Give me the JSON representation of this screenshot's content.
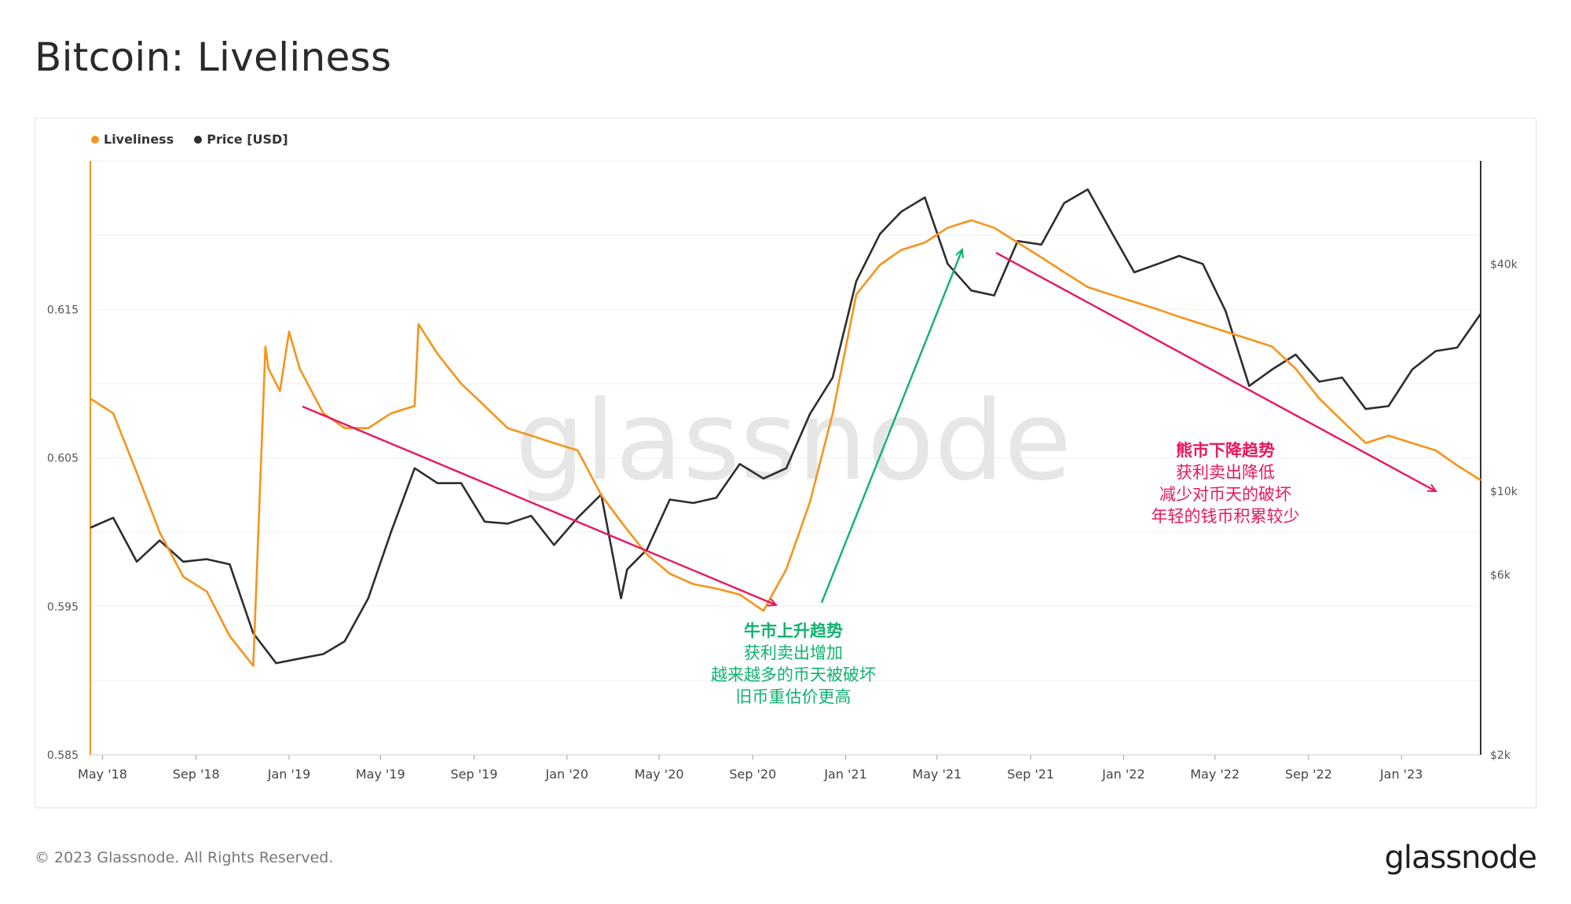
{
  "header": {
    "title": "Bitcoin: Liveliness"
  },
  "footer": {
    "copyright": "© 2023 Glassnode. All Rights Reserved.",
    "logo": "glassnode"
  },
  "watermark": "glassnode",
  "colors": {
    "liveliness": "#f7931a",
    "price": "#2d2d2d",
    "bull": "#0fb26e",
    "bear": "#e8175d"
  },
  "chart_data": {
    "type": "line",
    "title": "Bitcoin: Liveliness",
    "x_ticks": [
      "May '18",
      "Sep '18",
      "Jan '19",
      "May '19",
      "Sep '19",
      "Jan '20",
      "May '20",
      "Sep '20",
      "Jan '21",
      "May '21",
      "Sep '21",
      "Jan '22",
      "May '22",
      "Sep '22",
      "Jan '23"
    ],
    "y_left_ticks": [
      "0.615",
      "0.605",
      "0.595",
      "0.585"
    ],
    "y_left_tick_values": [
      0.615,
      0.605,
      0.595,
      0.585
    ],
    "y_right_ticks": [
      "$40k",
      "$10k",
      "$6k",
      "$2k"
    ],
    "y_right_tick_values": [
      40000,
      10000,
      6000,
      2000
    ],
    "y_left_range": [
      0.585,
      0.625
    ],
    "y_right_scale": "log",
    "x_range": [
      "2018-04-15",
      "2023-04-15"
    ],
    "legend_position": "top-left",
    "series": [
      {
        "name": "Liveliness",
        "axis": "left",
        "color": "#f7931a",
        "x": [
          "2018-04-15",
          "2018-05-15",
          "2018-06-15",
          "2018-07-15",
          "2018-08-15",
          "2018-09-15",
          "2018-10-15",
          "2018-11-15",
          "2018-12-01",
          "2018-12-05",
          "2018-12-20",
          "2019-01-01",
          "2019-01-15",
          "2019-02-15",
          "2019-03-15",
          "2019-04-15",
          "2019-05-15",
          "2019-06-15",
          "2019-06-20",
          "2019-07-15",
          "2019-08-15",
          "2019-09-15",
          "2019-10-15",
          "2019-11-15",
          "2019-12-15",
          "2020-01-15",
          "2020-02-15",
          "2020-03-15",
          "2020-04-15",
          "2020-05-15",
          "2020-06-15",
          "2020-07-15",
          "2020-08-15",
          "2020-09-15",
          "2020-10-15",
          "2020-11-15",
          "2020-12-15",
          "2021-01-15",
          "2021-02-15",
          "2021-03-15",
          "2021-04-15",
          "2021-05-15",
          "2021-06-15",
          "2021-07-15",
          "2021-08-15",
          "2021-09-15",
          "2021-10-15",
          "2021-11-15",
          "2021-12-15",
          "2022-01-15",
          "2022-02-15",
          "2022-03-15",
          "2022-04-15",
          "2022-05-15",
          "2022-06-15",
          "2022-07-15",
          "2022-08-15",
          "2022-09-15",
          "2022-10-15",
          "2022-11-15",
          "2022-12-15",
          "2023-01-15",
          "2023-02-15",
          "2023-03-15",
          "2023-04-15"
        ],
        "values": [
          0.609,
          0.608,
          0.604,
          0.6,
          0.597,
          0.596,
          0.593,
          0.591,
          0.6125,
          0.611,
          0.6095,
          0.6135,
          0.611,
          0.608,
          0.607,
          0.607,
          0.608,
          0.6085,
          0.614,
          0.612,
          0.61,
          0.6085,
          0.607,
          0.6065,
          0.606,
          0.6055,
          0.6025,
          0.6005,
          0.5985,
          0.5972,
          0.5965,
          0.5962,
          0.5958,
          0.5947,
          0.5975,
          0.602,
          0.608,
          0.616,
          0.618,
          0.619,
          0.6195,
          0.6205,
          0.621,
          0.6205,
          0.6195,
          0.6185,
          0.6175,
          0.6165,
          0.616,
          0.6155,
          0.615,
          0.6145,
          0.614,
          0.6135,
          0.613,
          0.6125,
          0.611,
          0.609,
          0.6075,
          0.606,
          0.6065,
          0.606,
          0.6055,
          0.6045,
          0.6035
        ]
      },
      {
        "name": "Price [USD]",
        "axis": "right",
        "color": "#2d2d2d",
        "x": [
          "2018-04-15",
          "2018-05-15",
          "2018-06-15",
          "2018-07-15",
          "2018-08-15",
          "2018-09-15",
          "2018-10-15",
          "2018-11-15",
          "2018-12-15",
          "2019-01-15",
          "2019-02-15",
          "2019-03-15",
          "2019-04-15",
          "2019-05-15",
          "2019-06-15",
          "2019-07-15",
          "2019-08-15",
          "2019-09-15",
          "2019-10-15",
          "2019-11-15",
          "2019-12-15",
          "2020-01-15",
          "2020-02-15",
          "2020-03-12",
          "2020-03-20",
          "2020-04-15",
          "2020-05-15",
          "2020-06-15",
          "2020-07-15",
          "2020-08-15",
          "2020-09-15",
          "2020-10-15",
          "2020-11-15",
          "2020-12-15",
          "2021-01-15",
          "2021-02-15",
          "2021-03-15",
          "2021-04-15",
          "2021-05-15",
          "2021-06-15",
          "2021-07-15",
          "2021-08-15",
          "2021-09-15",
          "2021-10-15",
          "2021-11-15",
          "2021-12-15",
          "2022-01-15",
          "2022-02-15",
          "2022-03-15",
          "2022-04-15",
          "2022-05-15",
          "2022-06-15",
          "2022-07-15",
          "2022-08-15",
          "2022-09-15",
          "2022-10-15",
          "2022-11-15",
          "2022-12-15",
          "2023-01-15",
          "2023-02-15",
          "2023-03-15",
          "2023-04-15"
        ],
        "values": [
          8000,
          8500,
          6500,
          7400,
          6500,
          6600,
          6400,
          4200,
          3500,
          3600,
          3700,
          4000,
          5200,
          7800,
          11500,
          10500,
          10500,
          8300,
          8200,
          8600,
          7200,
          8500,
          9800,
          5200,
          6200,
          7000,
          9500,
          9300,
          9600,
          11800,
          10800,
          11500,
          16000,
          20000,
          36000,
          48000,
          55000,
          60000,
          40000,
          34000,
          33000,
          46000,
          45000,
          58000,
          63000,
          49000,
          38000,
          40000,
          42000,
          40000,
          30000,
          19000,
          21000,
          23000,
          19500,
          20000,
          16500,
          16800,
          21000,
          23500,
          24000,
          29500
        ]
      }
    ],
    "annotations": {
      "bull": {
        "title": "牛市上升趋势",
        "lines": [
          "获利卖出增加",
          "越来越多的币天被破坏",
          "旧币重估价更高"
        ]
      },
      "bear": {
        "title": "熊市下降趋势",
        "lines": [
          "获利卖出降低",
          "减少对币天的破坏",
          "年轻的钱币积累较少"
        ]
      }
    }
  }
}
